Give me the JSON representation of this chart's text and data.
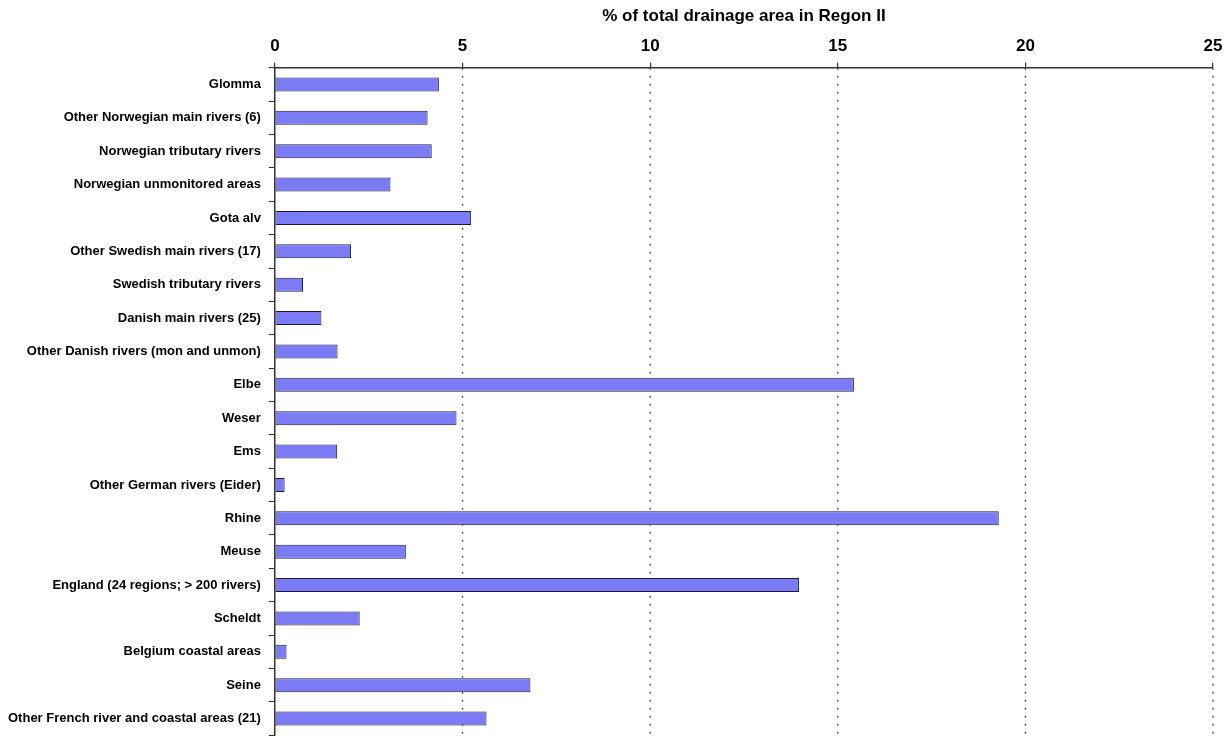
{
  "chart_data": {
    "type": "bar",
    "orientation": "horizontal",
    "xlabel": "% of total drainage area in Regon II",
    "categories": [
      "Glomma",
      "Other Norwegian main rivers (6)",
      "Norwegian tributary rivers",
      "Norwegian unmonitored areas",
      "Gota alv",
      "Other Swedish main rivers (17)",
      "Swedish tributary rivers",
      "Danish main rivers (25)",
      "Other Danish rivers (mon and unmon)",
      "Elbe",
      "Weser",
      "Ems",
      "Other German rivers (Eider)",
      "Rhine",
      "Meuse",
      "England (24 regions; > 200 rivers)",
      "Scheldt",
      "Belgium coastal areas",
      "Seine",
      "Other French river and coastal areas (21)"
    ],
    "values": [
      4.37,
      4.07,
      4.18,
      3.08,
      5.23,
      2.03,
      0.75,
      1.24,
      1.67,
      15.43,
      4.84,
      1.66,
      0.26,
      19.29,
      3.49,
      13.97,
      2.26,
      0.31,
      6.81,
      5.64
    ],
    "color": "#7b7bf5",
    "xlim": [
      0,
      25
    ],
    "xticks": [
      0,
      5,
      10,
      15,
      20,
      25
    ],
    "grid": "x",
    "legend": false
  }
}
